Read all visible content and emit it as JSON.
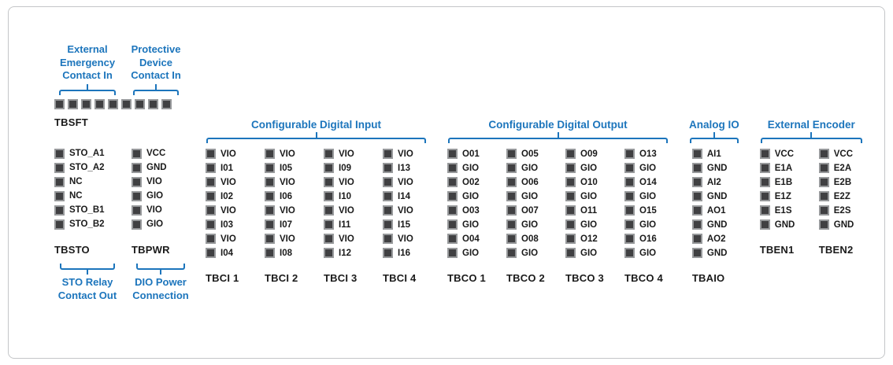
{
  "colors": {
    "accent_blue": "#1C75BC",
    "label_dark": "#1A1A1A",
    "pin_fill": "#404042",
    "pin_border": "#97999B",
    "panel_border": "#C4C6C8"
  },
  "left_panel": {
    "tbsft": {
      "label": "TBSFT",
      "pin_count": 9,
      "annotation_left": "External\nEmergency\nContact In",
      "annotation_right": "Protective\nDevice\nContact In"
    },
    "blocks": [
      {
        "label": "TBSTO",
        "pins": [
          "STO_A1",
          "STO_A2",
          "NC",
          "NC",
          "STO_B1",
          "STO_B2"
        ],
        "annotation": "STO Relay\nContact Out"
      },
      {
        "label": "TBPWR",
        "pins": [
          "VCC",
          "GND",
          "VIO",
          "GIO",
          "VIO",
          "GIO"
        ],
        "annotation": "DIO Power\nConnection"
      }
    ]
  },
  "digital_input": {
    "header": "Configurable Digital Input",
    "blocks": [
      {
        "label": "TBCI 1",
        "pins": [
          "VIO",
          "I01",
          "VIO",
          "I02",
          "VIO",
          "I03",
          "VIO",
          "I04"
        ]
      },
      {
        "label": "TBCI 2",
        "pins": [
          "VIO",
          "I05",
          "VIO",
          "I06",
          "VIO",
          "I07",
          "VIO",
          "I08"
        ]
      },
      {
        "label": "TBCI 3",
        "pins": [
          "VIO",
          "I09",
          "VIO",
          "I10",
          "VIO",
          "I11",
          "VIO",
          "I12"
        ]
      },
      {
        "label": "TBCI 4",
        "pins": [
          "VIO",
          "I13",
          "VIO",
          "I14",
          "VIO",
          "I15",
          "VIO",
          "I16"
        ]
      }
    ]
  },
  "digital_output": {
    "header": "Configurable Digital Output",
    "blocks": [
      {
        "label": "TBCO 1",
        "pins": [
          "O01",
          "GIO",
          "O02",
          "GIO",
          "O03",
          "GIO",
          "O04",
          "GIO"
        ]
      },
      {
        "label": "TBCO 2",
        "pins": [
          "O05",
          "GIO",
          "O06",
          "GIO",
          "O07",
          "GIO",
          "O08",
          "GIO"
        ]
      },
      {
        "label": "TBCO 3",
        "pins": [
          "O09",
          "GIO",
          "O10",
          "GIO",
          "O11",
          "GIO",
          "O12",
          "GIO"
        ]
      },
      {
        "label": "TBCO 4",
        "pins": [
          "O13",
          "GIO",
          "O14",
          "GIO",
          "O15",
          "GIO",
          "O16",
          "GIO"
        ]
      }
    ]
  },
  "analog_io": {
    "header": "Analog IO",
    "blocks": [
      {
        "label": "TBAIO",
        "pins": [
          "AI1",
          "GND",
          "AI2",
          "GND",
          "AO1",
          "GND",
          "AO2",
          "GND"
        ]
      }
    ]
  },
  "encoder": {
    "header": "External Encoder",
    "blocks": [
      {
        "label": "TBEN1",
        "pins": [
          "VCC",
          "E1A",
          "E1B",
          "E1Z",
          "E1S",
          "GND"
        ]
      },
      {
        "label": "TBEN2",
        "pins": [
          "VCC",
          "E2A",
          "E2B",
          "E2Z",
          "E2S",
          "GND"
        ]
      }
    ]
  }
}
